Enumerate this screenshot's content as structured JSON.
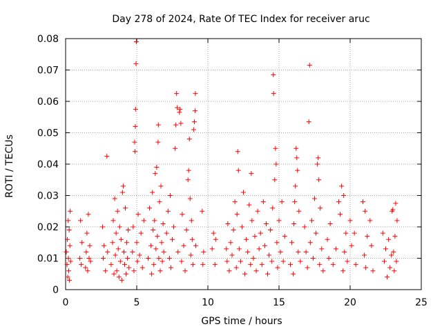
{
  "chart_data": {
    "type": "scatter",
    "title": "Day 278 of 2024, Rate Of TEC Index for receiver aruc",
    "xlabel": "GPS time / hours",
    "ylabel": "ROTI / TECUs",
    "xlim": [
      0,
      25
    ],
    "ylim": [
      0,
      0.08
    ],
    "xticks": [
      0,
      5,
      10,
      15,
      20,
      25
    ],
    "yticks": [
      0,
      0.01,
      0.02,
      0.03,
      0.04,
      0.05,
      0.06,
      0.07,
      0.08
    ],
    "xtick_labels": [
      "0",
      "5",
      "10",
      "15",
      "20",
      "25"
    ],
    "ytick_labels": [
      "0",
      "0.01",
      "0.02",
      "0.03",
      "0.04",
      "0.05",
      "0.06",
      "0.07",
      "0.08"
    ],
    "grid": true,
    "marker": "+",
    "color": "#ff0000",
    "series": [
      {
        "points": [
          [
            0.05,
            0.012
          ],
          [
            0.1,
            0.008
          ],
          [
            0.12,
            0.016
          ],
          [
            0.15,
            0.004
          ],
          [
            0.18,
            0.022
          ],
          [
            0.2,
            0.01
          ],
          [
            0.22,
            0.006
          ],
          [
            0.25,
            0.019
          ],
          [
            0.27,
            0.003
          ],
          [
            0.3,
            0.014
          ],
          [
            0.32,
            0.025
          ],
          [
            0.35,
            0.009
          ],
          [
            1.0,
            0.01
          ],
          [
            1.05,
            0.022
          ],
          [
            1.1,
            0.008
          ],
          [
            1.15,
            0.015
          ],
          [
            1.4,
            0.007
          ],
          [
            1.45,
            0.012
          ],
          [
            1.5,
            0.018
          ],
          [
            1.55,
            0.006
          ],
          [
            1.6,
            0.024
          ],
          [
            1.65,
            0.01
          ],
          [
            1.7,
            0.014
          ],
          [
            1.75,
            0.009
          ],
          [
            2.6,
            0.02
          ],
          [
            2.65,
            0.01
          ],
          [
            2.7,
            0.014
          ],
          [
            2.8,
            0.006
          ],
          [
            2.9,
            0.0425
          ],
          [
            2.95,
            0.012
          ],
          [
            3.2,
            0.008
          ],
          [
            3.3,
            0.015
          ],
          [
            3.35,
            0.022
          ],
          [
            3.4,
            0.005
          ],
          [
            3.45,
            0.029
          ],
          [
            3.5,
            0.011
          ],
          [
            3.55,
            0.018
          ],
          [
            3.6,
            0.006
          ],
          [
            3.65,
            0.025
          ],
          [
            3.7,
            0.013
          ],
          [
            3.75,
            0.004
          ],
          [
            3.8,
            0.02
          ],
          [
            3.85,
            0.009
          ],
          [
            3.9,
            0.016
          ],
          [
            3.95,
            0.003
          ],
          [
            4.0,
            0.031
          ],
          [
            4.05,
            0.033
          ],
          [
            4.1,
            0.012
          ],
          [
            4.15,
            0.008
          ],
          [
            4.2,
            0.026
          ],
          [
            4.25,
            0.005
          ],
          [
            4.3,
            0.015
          ],
          [
            4.35,
            0.01
          ],
          [
            4.4,
            0.019
          ],
          [
            4.45,
            0.007
          ],
          [
            4.7,
            0.012
          ],
          [
            4.75,
            0.02
          ],
          [
            4.8,
            0.006
          ],
          [
            4.85,
            0.047
          ],
          [
            4.88,
            0.044
          ],
          [
            4.9,
            0.052
          ],
          [
            4.92,
            0.0575
          ],
          [
            4.95,
            0.072
          ],
          [
            4.97,
            0.079
          ],
          [
            5.0,
            0.015
          ],
          [
            5.05,
            0.009
          ],
          [
            5.1,
            0.024
          ],
          [
            5.2,
            0.011
          ],
          [
            5.3,
            0.018
          ],
          [
            5.4,
            0.007
          ],
          [
            5.5,
            0.022
          ],
          [
            5.8,
            0.01
          ],
          [
            5.9,
            0.026
          ],
          [
            6.0,
            0.014
          ],
          [
            6.05,
            0.005
          ],
          [
            6.1,
            0.031
          ],
          [
            6.15,
            0.019
          ],
          [
            6.2,
            0.008
          ],
          [
            6.25,
            0.022
          ],
          [
            6.3,
            0.037
          ],
          [
            6.35,
            0.013
          ],
          [
            6.4,
            0.039
          ],
          [
            6.45,
            0.017
          ],
          [
            6.5,
            0.047
          ],
          [
            6.52,
            0.0525
          ],
          [
            6.55,
            0.01
          ],
          [
            6.6,
            0.028
          ],
          [
            6.65,
            0.006
          ],
          [
            6.7,
            0.033
          ],
          [
            6.75,
            0.015
          ],
          [
            6.8,
            0.009
          ],
          [
            6.85,
            0.021
          ],
          [
            6.9,
            0.012
          ],
          [
            7.1,
            0.018
          ],
          [
            7.2,
            0.025
          ],
          [
            7.3,
            0.01
          ],
          [
            7.35,
            0.03
          ],
          [
            7.4,
            0.007
          ],
          [
            7.5,
            0.016
          ],
          [
            7.6,
            0.02
          ],
          [
            7.7,
            0.045
          ],
          [
            7.75,
            0.0525
          ],
          [
            7.8,
            0.0625
          ],
          [
            7.85,
            0.058
          ],
          [
            7.9,
            0.012
          ],
          [
            8.0,
            0.0565
          ],
          [
            8.05,
            0.0575
          ],
          [
            8.1,
            0.053
          ],
          [
            8.15,
            0.009
          ],
          [
            8.2,
            0.024
          ],
          [
            8.3,
            0.014
          ],
          [
            8.4,
            0.006
          ],
          [
            8.5,
            0.019
          ],
          [
            8.6,
            0.035
          ],
          [
            8.65,
            0.038
          ],
          [
            8.7,
            0.048
          ],
          [
            8.75,
            0.029
          ],
          [
            8.8,
            0.011
          ],
          [
            8.85,
            0.022
          ],
          [
            8.9,
            0.016
          ],
          [
            8.95,
            0.008
          ],
          [
            9.0,
            0.051
          ],
          [
            9.05,
            0.0535
          ],
          [
            9.1,
            0.057
          ],
          [
            9.12,
            0.0625
          ],
          [
            9.15,
            0.014
          ],
          [
            9.6,
            0.025
          ],
          [
            9.65,
            0.008
          ],
          [
            9.7,
            0.012
          ],
          [
            10.3,
            0.013
          ],
          [
            10.4,
            0.018
          ],
          [
            10.5,
            0.008
          ],
          [
            10.55,
            0.016
          ],
          [
            11.3,
            0.013
          ],
          [
            11.35,
            0.009
          ],
          [
            11.4,
            0.021
          ],
          [
            11.5,
            0.006
          ],
          [
            11.6,
            0.015
          ],
          [
            11.7,
            0.011
          ],
          [
            11.8,
            0.019
          ],
          [
            11.9,
            0.028
          ],
          [
            12.0,
            0.007
          ],
          [
            12.05,
            0.024
          ],
          [
            12.1,
            0.044
          ],
          [
            12.15,
            0.038
          ],
          [
            12.2,
            0.013
          ],
          [
            12.3,
            0.009
          ],
          [
            12.4,
            0.02
          ],
          [
            12.5,
            0.031
          ],
          [
            12.6,
            0.005
          ],
          [
            12.7,
            0.016
          ],
          [
            12.8,
            0.012
          ],
          [
            12.9,
            0.027
          ],
          [
            13.0,
            0.008
          ],
          [
            13.05,
            0.037
          ],
          [
            13.1,
            0.022
          ],
          [
            13.2,
            0.01
          ],
          [
            13.3,
            0.017
          ],
          [
            13.4,
            0.006
          ],
          [
            13.5,
            0.025
          ],
          [
            13.6,
            0.013
          ],
          [
            13.7,
            0.018
          ],
          [
            13.8,
            0.008
          ],
          [
            13.9,
            0.028
          ],
          [
            14.0,
            0.014
          ],
          [
            14.1,
            0.021
          ],
          [
            14.2,
            0.005
          ],
          [
            14.3,
            0.011
          ],
          [
            14.4,
            0.019
          ],
          [
            14.5,
            0.009
          ],
          [
            14.55,
            0.026
          ],
          [
            14.6,
            0.0685
          ],
          [
            14.62,
            0.0625
          ],
          [
            14.7,
            0.035
          ],
          [
            14.75,
            0.045
          ],
          [
            14.8,
            0.04
          ],
          [
            14.85,
            0.015
          ],
          [
            14.9,
            0.007
          ],
          [
            15.0,
            0.022
          ],
          [
            15.1,
            0.012
          ],
          [
            15.2,
            0.028
          ],
          [
            15.3,
            0.009
          ],
          [
            15.4,
            0.017
          ],
          [
            15.8,
            0.008
          ],
          [
            15.9,
            0.015
          ],
          [
            16.0,
            0.005
          ],
          [
            16.05,
            0.021
          ],
          [
            16.1,
            0.028
          ],
          [
            16.15,
            0.033
          ],
          [
            16.2,
            0.045
          ],
          [
            16.25,
            0.042
          ],
          [
            16.3,
            0.038
          ],
          [
            16.35,
            0.012
          ],
          [
            16.4,
            0.025
          ],
          [
            16.5,
            0.009
          ],
          [
            16.8,
            0.02
          ],
          [
            16.9,
            0.012
          ],
          [
            17.0,
            0.007
          ],
          [
            17.1,
            0.0535
          ],
          [
            17.15,
            0.0715
          ],
          [
            17.2,
            0.015
          ],
          [
            17.3,
            0.022
          ],
          [
            17.4,
            0.01
          ],
          [
            17.5,
            0.029
          ],
          [
            17.6,
            0.018
          ],
          [
            17.7,
            0.04
          ],
          [
            17.75,
            0.042
          ],
          [
            17.8,
            0.035
          ],
          [
            17.85,
            0.008
          ],
          [
            17.9,
            0.026
          ],
          [
            18.0,
            0.013
          ],
          [
            18.1,
            0.006
          ],
          [
            18.4,
            0.016
          ],
          [
            18.5,
            0.01
          ],
          [
            18.6,
            0.021
          ],
          [
            18.8,
            0.008
          ],
          [
            19.0,
            0.013
          ],
          [
            19.2,
            0.028
          ],
          [
            19.3,
            0.024
          ],
          [
            19.4,
            0.033
          ],
          [
            19.5,
            0.006
          ],
          [
            19.55,
            0.03
          ],
          [
            19.6,
            0.012
          ],
          [
            19.7,
            0.018
          ],
          [
            19.8,
            0.009
          ],
          [
            20.0,
            0.022
          ],
          [
            20.1,
            0.014
          ],
          [
            20.3,
            0.018
          ],
          [
            20.4,
            0.008
          ],
          [
            20.9,
            0.028
          ],
          [
            21.0,
            0.011
          ],
          [
            21.05,
            0.025
          ],
          [
            21.1,
            0.007
          ],
          [
            21.2,
            0.017
          ],
          [
            21.4,
            0.022
          ],
          [
            21.5,
            0.014
          ],
          [
            21.6,
            0.006
          ],
          [
            22.3,
            0.018
          ],
          [
            22.4,
            0.009
          ],
          [
            22.5,
            0.013
          ],
          [
            22.6,
            0.004
          ],
          [
            22.7,
            0.016
          ],
          [
            22.8,
            0.007
          ],
          [
            22.9,
            0.011
          ],
          [
            22.95,
            0.025
          ],
          [
            23.0,
            0.0255
          ],
          [
            23.05,
            0.012
          ],
          [
            23.1,
            0.006
          ],
          [
            23.15,
            0.017
          ],
          [
            23.2,
            0.0275
          ],
          [
            23.25,
            0.009
          ],
          [
            23.3,
            0.022
          ]
        ]
      }
    ]
  }
}
